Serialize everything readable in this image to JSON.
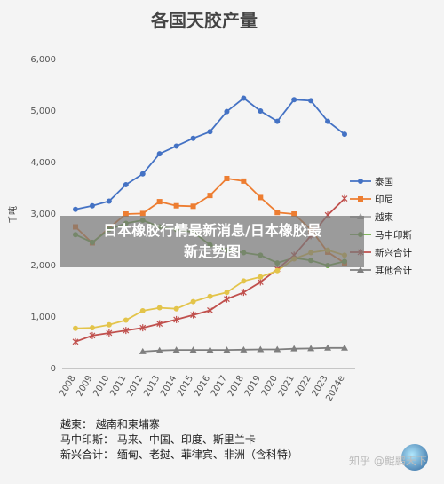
{
  "chart_data": {
    "type": "line",
    "title": "各国天胶产量",
    "ylabel": "千吨",
    "xlabel": "",
    "ylim": [
      0,
      6000
    ],
    "yticks": [
      "0",
      "1,000",
      "2,000",
      "3,000",
      "4,000",
      "5,000",
      "6,000"
    ],
    "x": [
      "2008",
      "2009",
      "2010",
      "2011",
      "2012",
      "2013",
      "2014",
      "2015",
      "2016",
      "2017",
      "2018",
      "2019",
      "2020",
      "2021",
      "2022",
      "2023",
      "2024e"
    ],
    "grid": false,
    "legend_position": "right",
    "series": [
      {
        "name": "泰国",
        "color": "#4472c4",
        "marker": "circle",
        "values": [
          3090,
          3160,
          3250,
          3570,
          3780,
          4170,
          4320,
          4470,
          4600,
          4990,
          5250,
          5000,
          4800,
          5220,
          5200,
          4800,
          4550
        ]
      },
      {
        "name": "印尼",
        "color": "#ed7d31",
        "marker": "square",
        "values": [
          2750,
          2440,
          2730,
          3000,
          3010,
          3240,
          3160,
          3150,
          3360,
          3690,
          3640,
          3320,
          3030,
          3000,
          2700,
          2260,
          2050
        ]
      },
      {
        "name": "越柬",
        "color": "#a5a5a5",
        "marker": "triangle",
        "values": [
          null,
          null,
          null,
          null,
          null,
          null,
          null,
          null,
          null,
          null,
          null,
          null,
          null,
          null,
          null,
          null,
          null
        ]
      },
      {
        "name": "马中印斯",
        "color": "#70ad47",
        "marker": "circle",
        "values": [
          2600,
          2450,
          2700,
          2820,
          2880,
          2750,
          2700,
          2650,
          2400,
          2300,
          2250,
          2200,
          2050,
          2150,
          2100,
          2000,
          2080
        ]
      },
      {
        "name": "新兴合计",
        "color": "#c0504d",
        "marker": "star",
        "values": [
          520,
          640,
          690,
          740,
          790,
          870,
          950,
          1040,
          1130,
          1350,
          1480,
          1680,
          1930,
          2200,
          2580,
          2980,
          3300
        ]
      },
      {
        "name": "其他合计",
        "color": "#7f7f7f",
        "marker": "triangle",
        "values": [
          null,
          null,
          null,
          null,
          330,
          350,
          360,
          360,
          360,
          360,
          365,
          370,
          370,
          385,
          390,
          400,
          400
        ]
      },
      {
        "name": "",
        "color": "#e3c44a",
        "marker": "circle",
        "values": [
          780,
          790,
          850,
          940,
          1120,
          1180,
          1160,
          1300,
          1400,
          1480,
          1700,
          1780,
          1900,
          2130,
          2250,
          2300,
          2200
        ]
      }
    ]
  },
  "overlay": {
    "line1": "日本橡胶行情最新消息/日本橡胶最",
    "line2": "新走势图"
  },
  "notes": [
    "越柬：   越南和柬埔寨",
    "马中印斯：  马来、中国、印度、斯里兰卡",
    "新兴合计：  缅甸、老挝、菲律宾、非洲（含科特）"
  ],
  "watermark": "知乎 @鲲鹏天下"
}
